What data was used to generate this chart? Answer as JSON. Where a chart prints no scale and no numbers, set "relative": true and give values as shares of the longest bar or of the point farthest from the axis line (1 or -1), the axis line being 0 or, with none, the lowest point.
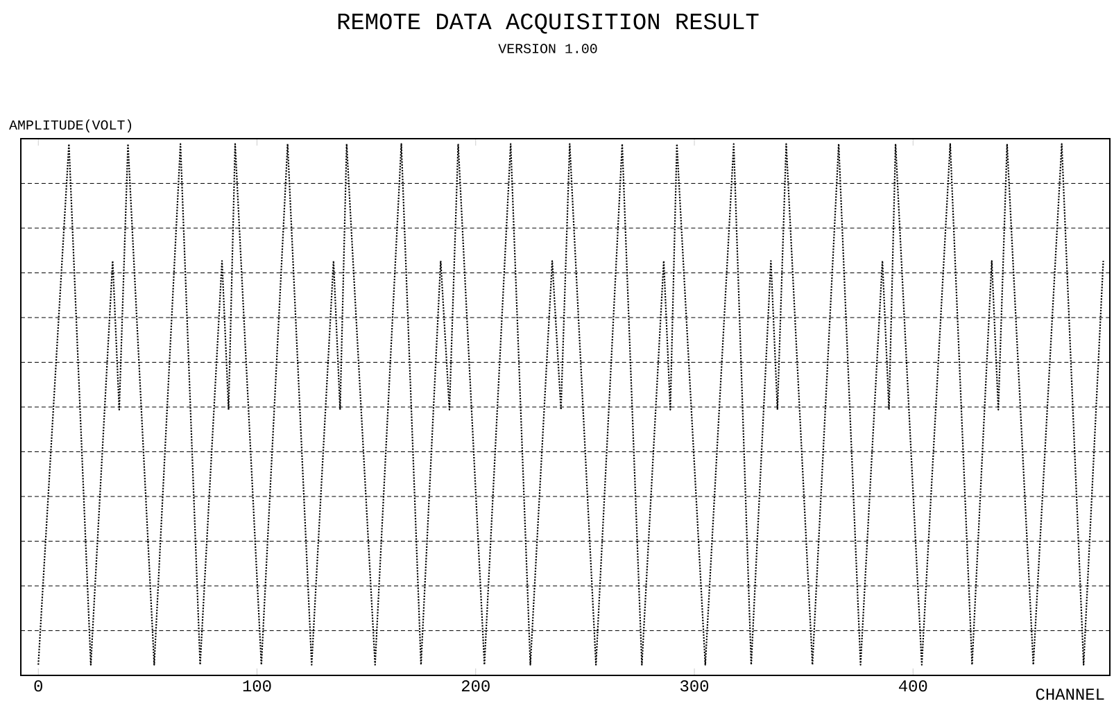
{
  "chart_data": {
    "type": "line",
    "title": "REMOTE DATA ACQUISITION RESULT",
    "subtitle": "VERSION 1.00",
    "ylabel": "AMPLITUDE(VOLT)",
    "xlabel": "CHANNEL",
    "relative": true,
    "xlim": [
      -8,
      490
    ],
    "xticks": [
      0,
      100,
      200,
      300,
      400
    ],
    "grid": "y",
    "line_style": "dotted",
    "marker": "none",
    "series": [
      {
        "color": "#000000",
        "x": [
          0,
          14,
          24,
          34,
          37,
          41,
          53,
          65,
          74,
          84,
          87,
          90,
          102,
          114,
          125,
          135,
          138,
          141,
          154,
          166,
          175,
          184,
          188,
          192,
          204,
          216,
          225,
          235,
          239,
          243,
          255,
          267,
          276,
          286,
          289,
          292,
          305,
          318,
          326,
          335,
          338,
          342,
          354,
          366,
          376,
          386,
          389,
          392,
          404,
          417,
          427,
          436,
          439,
          443,
          455,
          468,
          478,
          487
        ],
        "values": [
          0.02,
          1,
          0.02,
          0.78,
          0.5,
          1,
          0.02,
          1,
          0.02,
          0.78,
          0.5,
          1,
          0.02,
          1,
          0.02,
          0.78,
          0.5,
          1,
          0.02,
          1,
          0.02,
          0.78,
          0.5,
          1,
          0.02,
          1,
          0.02,
          0.78,
          0.5,
          1,
          0.02,
          1,
          0.02,
          0.78,
          0.5,
          1,
          0.02,
          1,
          0.02,
          0.78,
          0.5,
          1,
          0.02,
          1,
          0.02,
          0.78,
          0.5,
          1,
          0.02,
          1,
          0.02,
          0.78,
          0.5,
          1,
          0.02,
          1,
          0.02,
          0.78
        ]
      }
    ]
  }
}
